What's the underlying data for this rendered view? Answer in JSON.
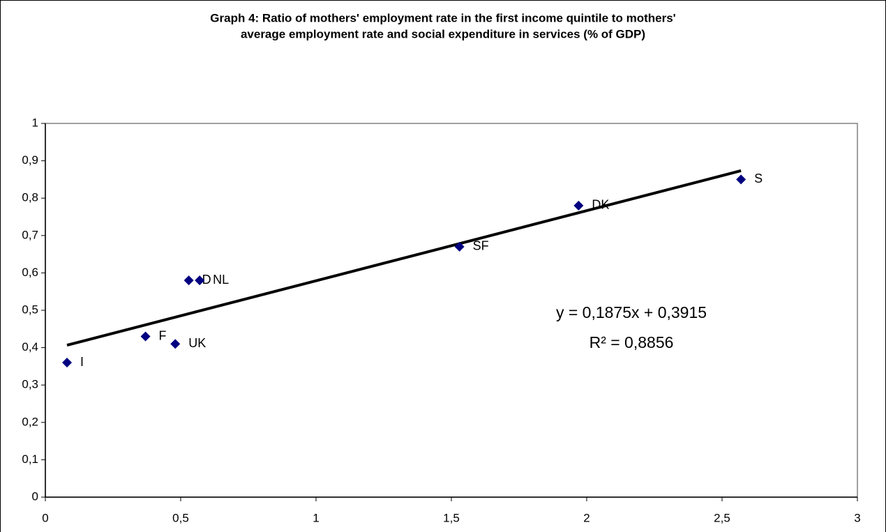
{
  "chart_data": {
    "type": "scatter",
    "title": [
      "Graph 4: Ratio of mothers' employment rate in the first income quintile to mothers'",
      "average employment rate and social expenditure in services (% of GDP)"
    ],
    "categories": [
      "I",
      "F",
      "UK",
      "D",
      "NL",
      "SF",
      "DK",
      "S"
    ],
    "x": [
      0.08,
      0.37,
      0.48,
      0.53,
      0.57,
      1.53,
      1.97,
      2.57
    ],
    "values": [
      0.36,
      0.43,
      0.41,
      0.58,
      0.58,
      0.67,
      0.78,
      0.85
    ],
    "color": "#000080",
    "xlim": [
      0,
      3
    ],
    "xticks": [
      0,
      {
        "value": 0.5,
        "label": "0,5"
      },
      1,
      {
        "value": 1.5,
        "label": "1,5"
      },
      2,
      {
        "value": 2.5,
        "label": "2,5"
      },
      3
    ],
    "ylim": [
      0,
      1
    ],
    "yticks": [
      0,
      {
        "value": 0.1,
        "label": "0,1"
      },
      {
        "value": 0.2,
        "label": "0,2"
      },
      {
        "value": 0.3,
        "label": "0,3"
      },
      {
        "value": 0.4,
        "label": "0,4"
      },
      {
        "value": 0.5,
        "label": "0,5"
      },
      {
        "value": 0.6,
        "label": "0,6"
      },
      {
        "value": 0.7,
        "label": "0,7"
      },
      {
        "value": 0.8,
        "label": "0,8"
      },
      {
        "value": 0.9,
        "label": "0,9"
      },
      1
    ],
    "grid": false,
    "trendline": {
      "slope": 0.1875,
      "intercept": 0.3915,
      "color": "#000000",
      "label": "y = 0,1875x + 0,3915",
      "r2_label": "R² = 0,8856"
    }
  }
}
